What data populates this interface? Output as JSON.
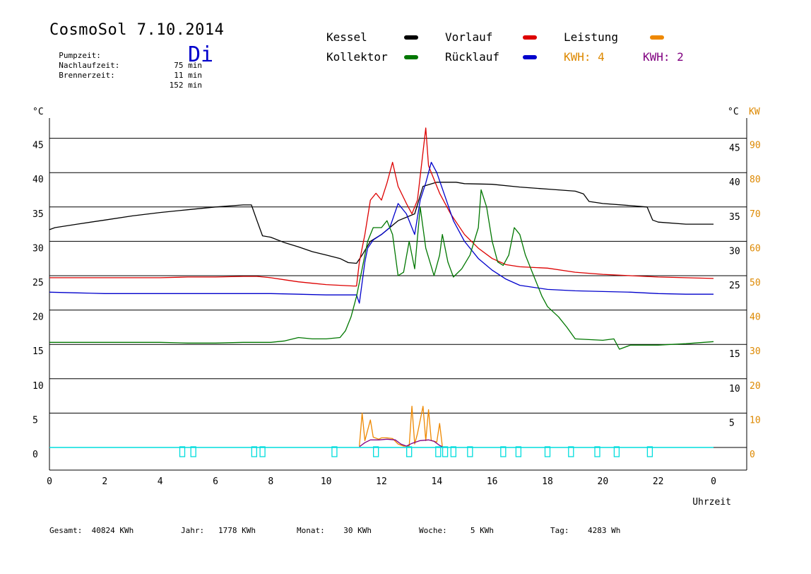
{
  "header": {
    "title": "CosmoSol 7.10.2014",
    "day": "Di",
    "info": [
      {
        "label": "Pumpzeit:",
        "value": "75 min"
      },
      {
        "label": "Nachlaufzeit:",
        "value": "11 min"
      },
      {
        "label": "Brennerzeit:",
        "value": "152 min"
      }
    ]
  },
  "legend": {
    "kessel": "Kessel",
    "kollektor": "Kollektor",
    "vorlauf": "Vorlauf",
    "ruecklauf": "Rücklauf",
    "leistung": "Leistung",
    "kwh_orange": "KWH: 4",
    "kwh_purple": "KWH: 2"
  },
  "colors": {
    "kessel": "#000000",
    "kollektor": "#007700",
    "vorlauf": "#dd0000",
    "ruecklauf": "#0000cc",
    "leistung": "#ee8800",
    "kwh2": "#800080",
    "pump": "#00dddd"
  },
  "footer": [
    {
      "label": "Gesamt:",
      "value": "40824 KWh"
    },
    {
      "label": "Jahr:",
      "value": "1778 KWh"
    },
    {
      "label": "Monat:",
      "value": "30 KWh"
    },
    {
      "label": "Woche:",
      "value": "5 KWh"
    },
    {
      "label": "Tag:",
      "value": "4283 Wh"
    }
  ],
  "chart_data": {
    "type": "line",
    "title": "CosmoSol 7.10.2014",
    "xlabel": "Uhrzeit",
    "ylabel": "°C",
    "ylabel_right": [
      "°C",
      "KW"
    ],
    "xlim": [
      0,
      24
    ],
    "ylim": [
      -3,
      48
    ],
    "grid": true,
    "x_ticks": [
      "0",
      "2",
      "4",
      "6",
      "8",
      "10",
      "12",
      "14",
      "16",
      "18",
      "20",
      "22",
      "0"
    ],
    "y_ticks": [
      "0",
      "5",
      "10",
      "15",
      "20",
      "25",
      "30",
      "35",
      "40",
      "45"
    ],
    "right_c_ticks": [
      "5",
      "10",
      "15",
      "25",
      "30",
      "35",
      "40",
      "45"
    ],
    "kw_ticks": [
      "0",
      "10",
      "20",
      "30",
      "40",
      "50",
      "60",
      "70",
      "80",
      "90"
    ],
    "series": [
      {
        "name": "Kessel",
        "key": "kessel",
        "points": [
          [
            0,
            31.7
          ],
          [
            0.2,
            32
          ],
          [
            1,
            32.5
          ],
          [
            2,
            33.1
          ],
          [
            3,
            33.7
          ],
          [
            4,
            34.2
          ],
          [
            5,
            34.6
          ],
          [
            6,
            35
          ],
          [
            7,
            35.3
          ],
          [
            7.3,
            35.3
          ],
          [
            7.5,
            33
          ],
          [
            7.7,
            30.8
          ],
          [
            8,
            30.6
          ],
          [
            8.5,
            29.8
          ],
          [
            9,
            29.2
          ],
          [
            9.5,
            28.5
          ],
          [
            10,
            28
          ],
          [
            10.5,
            27.5
          ],
          [
            10.8,
            26.9
          ],
          [
            11.1,
            26.8
          ],
          [
            11.3,
            28
          ],
          [
            11.6,
            30
          ],
          [
            12,
            31
          ],
          [
            12.6,
            33
          ],
          [
            13.2,
            34
          ],
          [
            13.5,
            38
          ],
          [
            14,
            38.6
          ],
          [
            14.7,
            38.6
          ],
          [
            15,
            38.4
          ],
          [
            16,
            38.3
          ],
          [
            17,
            37.9
          ],
          [
            18,
            37.6
          ],
          [
            19,
            37.3
          ],
          [
            19.3,
            36.9
          ],
          [
            19.5,
            35.8
          ],
          [
            20,
            35.5
          ],
          [
            21,
            35.2
          ],
          [
            21.6,
            35
          ],
          [
            21.8,
            33.1
          ],
          [
            22,
            32.8
          ],
          [
            23,
            32.5
          ],
          [
            24,
            32.5
          ]
        ]
      },
      {
        "name": "Vorlauf",
        "key": "vorlauf",
        "points": [
          [
            0,
            24.7
          ],
          [
            1,
            24.7
          ],
          [
            2,
            24.7
          ],
          [
            3,
            24.7
          ],
          [
            4,
            24.7
          ],
          [
            5,
            24.8
          ],
          [
            6,
            24.8
          ],
          [
            7,
            24.9
          ],
          [
            7.5,
            24.9
          ],
          [
            8,
            24.7
          ],
          [
            8.5,
            24.4
          ],
          [
            9,
            24.1
          ],
          [
            9.5,
            23.9
          ],
          [
            10,
            23.7
          ],
          [
            10.5,
            23.6
          ],
          [
            11,
            23.5
          ],
          [
            11.1,
            23.5
          ],
          [
            11.2,
            27
          ],
          [
            11.3,
            29
          ],
          [
            11.4,
            31
          ],
          [
            11.6,
            36
          ],
          [
            11.8,
            37
          ],
          [
            12,
            36
          ],
          [
            12.2,
            38.5
          ],
          [
            12.4,
            41.5
          ],
          [
            12.6,
            38
          ],
          [
            12.9,
            35.5
          ],
          [
            13.1,
            34
          ],
          [
            13.3,
            36
          ],
          [
            13.5,
            43
          ],
          [
            13.6,
            46.5
          ],
          [
            13.7,
            41
          ],
          [
            13.9,
            39
          ],
          [
            14.1,
            37
          ],
          [
            14.5,
            34
          ],
          [
            15,
            31
          ],
          [
            15.5,
            29
          ],
          [
            16,
            27.5
          ],
          [
            16.5,
            26.6
          ],
          [
            17,
            26.3
          ],
          [
            18,
            26.1
          ],
          [
            19,
            25.5
          ],
          [
            20,
            25.2
          ],
          [
            21,
            25
          ],
          [
            22,
            24.8
          ],
          [
            23,
            24.7
          ],
          [
            24,
            24.6
          ]
        ]
      },
      {
        "name": "Rücklauf",
        "key": "ruecklauf",
        "points": [
          [
            0,
            22.6
          ],
          [
            1,
            22.5
          ],
          [
            2,
            22.4
          ],
          [
            3,
            22.4
          ],
          [
            4,
            22.4
          ],
          [
            5,
            22.4
          ],
          [
            6,
            22.4
          ],
          [
            7,
            22.4
          ],
          [
            8,
            22.4
          ],
          [
            9,
            22.3
          ],
          [
            10,
            22.2
          ],
          [
            11,
            22.2
          ],
          [
            11.1,
            22.2
          ],
          [
            11.2,
            21
          ],
          [
            11.3,
            24
          ],
          [
            11.4,
            27
          ],
          [
            11.5,
            29
          ],
          [
            11.7,
            30.2
          ],
          [
            12,
            31
          ],
          [
            12.3,
            32
          ],
          [
            12.6,
            35.5
          ],
          [
            12.9,
            34
          ],
          [
            13.2,
            31
          ],
          [
            13.4,
            36
          ],
          [
            13.6,
            38.5
          ],
          [
            13.8,
            41.5
          ],
          [
            14,
            40
          ],
          [
            14.3,
            36.5
          ],
          [
            14.6,
            33
          ],
          [
            15,
            30
          ],
          [
            15.5,
            27.5
          ],
          [
            16,
            25.8
          ],
          [
            16.5,
            24.5
          ],
          [
            17,
            23.6
          ],
          [
            18,
            23
          ],
          [
            19,
            22.8
          ],
          [
            20,
            22.7
          ],
          [
            21,
            22.6
          ],
          [
            22,
            22.4
          ],
          [
            23,
            22.3
          ],
          [
            24,
            22.3
          ]
        ]
      },
      {
        "name": "Kollektor",
        "key": "kollektor",
        "points": [
          [
            0,
            15.3
          ],
          [
            1,
            15.3
          ],
          [
            2,
            15.3
          ],
          [
            3,
            15.3
          ],
          [
            4,
            15.3
          ],
          [
            5,
            15.2
          ],
          [
            6,
            15.2
          ],
          [
            7,
            15.3
          ],
          [
            8,
            15.3
          ],
          [
            8.5,
            15.5
          ],
          [
            9,
            16
          ],
          [
            9.5,
            15.8
          ],
          [
            10,
            15.8
          ],
          [
            10.5,
            16
          ],
          [
            10.7,
            17
          ],
          [
            10.9,
            19
          ],
          [
            11.1,
            22
          ],
          [
            11.3,
            26
          ],
          [
            11.5,
            30
          ],
          [
            11.7,
            32
          ],
          [
            12,
            32
          ],
          [
            12.2,
            33
          ],
          [
            12.4,
            31
          ],
          [
            12.6,
            25
          ],
          [
            12.8,
            25.5
          ],
          [
            13,
            30
          ],
          [
            13.2,
            26
          ],
          [
            13.4,
            35
          ],
          [
            13.6,
            29
          ],
          [
            13.9,
            25
          ],
          [
            14.1,
            28
          ],
          [
            14.2,
            31
          ],
          [
            14.4,
            27
          ],
          [
            14.6,
            24.8
          ],
          [
            14.9,
            26
          ],
          [
            15.2,
            28
          ],
          [
            15.5,
            32
          ],
          [
            15.6,
            37.5
          ],
          [
            15.8,
            35
          ],
          [
            16,
            30
          ],
          [
            16.2,
            27
          ],
          [
            16.4,
            26.5
          ],
          [
            16.6,
            28
          ],
          [
            16.8,
            32
          ],
          [
            17,
            31
          ],
          [
            17.2,
            28
          ],
          [
            17.5,
            25
          ],
          [
            17.8,
            22
          ],
          [
            18,
            20.5
          ],
          [
            18.4,
            19
          ],
          [
            18.7,
            17.5
          ],
          [
            19,
            15.8
          ],
          [
            19.5,
            15.7
          ],
          [
            20,
            15.6
          ],
          [
            20.4,
            15.8
          ],
          [
            20.6,
            14.3
          ],
          [
            21,
            14.9
          ],
          [
            22,
            14.9
          ],
          [
            23,
            15.1
          ],
          [
            24,
            15.4
          ]
        ]
      },
      {
        "name": "Leistung",
        "key": "leistung",
        "points": [
          [
            11.2,
            0.2
          ],
          [
            11.3,
            5
          ],
          [
            11.4,
            1
          ],
          [
            11.6,
            4
          ],
          [
            11.7,
            1.5
          ],
          [
            11.9,
            1.2
          ],
          [
            12,
            1.4
          ],
          [
            12.2,
            1.4
          ],
          [
            12.4,
            1.3
          ],
          [
            12.6,
            0.5
          ],
          [
            12.8,
            0.2
          ],
          [
            13,
            0.2
          ],
          [
            13.1,
            6
          ],
          [
            13.2,
            0.5
          ],
          [
            13.3,
            2
          ],
          [
            13.5,
            6
          ],
          [
            13.6,
            1
          ],
          [
            13.7,
            5.5
          ],
          [
            13.8,
            1
          ],
          [
            14,
            0.8
          ],
          [
            14.1,
            3.5
          ],
          [
            14.2,
            0.1
          ]
        ]
      },
      {
        "name": "KWH: 2",
        "key": "kwh2",
        "points": [
          [
            11.2,
            0.1
          ],
          [
            11.4,
            0.7
          ],
          [
            11.6,
            1.1
          ],
          [
            11.9,
            1.1
          ],
          [
            12.2,
            1.2
          ],
          [
            12.5,
            1.1
          ],
          [
            12.7,
            0.5
          ],
          [
            12.9,
            0.2
          ],
          [
            13.1,
            0.6
          ],
          [
            13.4,
            1
          ],
          [
            13.7,
            1.1
          ],
          [
            13.9,
            0.9
          ],
          [
            14.1,
            0.3
          ],
          [
            14.2,
            0.1
          ]
        ]
      }
    ],
    "pump_markers_hours": [
      4.8,
      5.2,
      7.4,
      7.7,
      10.3,
      11.8,
      13.0,
      14.05,
      14.3,
      14.6,
      15.2,
      16.4,
      16.95,
      18.0,
      18.85,
      19.8,
      20.5,
      21.7
    ]
  }
}
